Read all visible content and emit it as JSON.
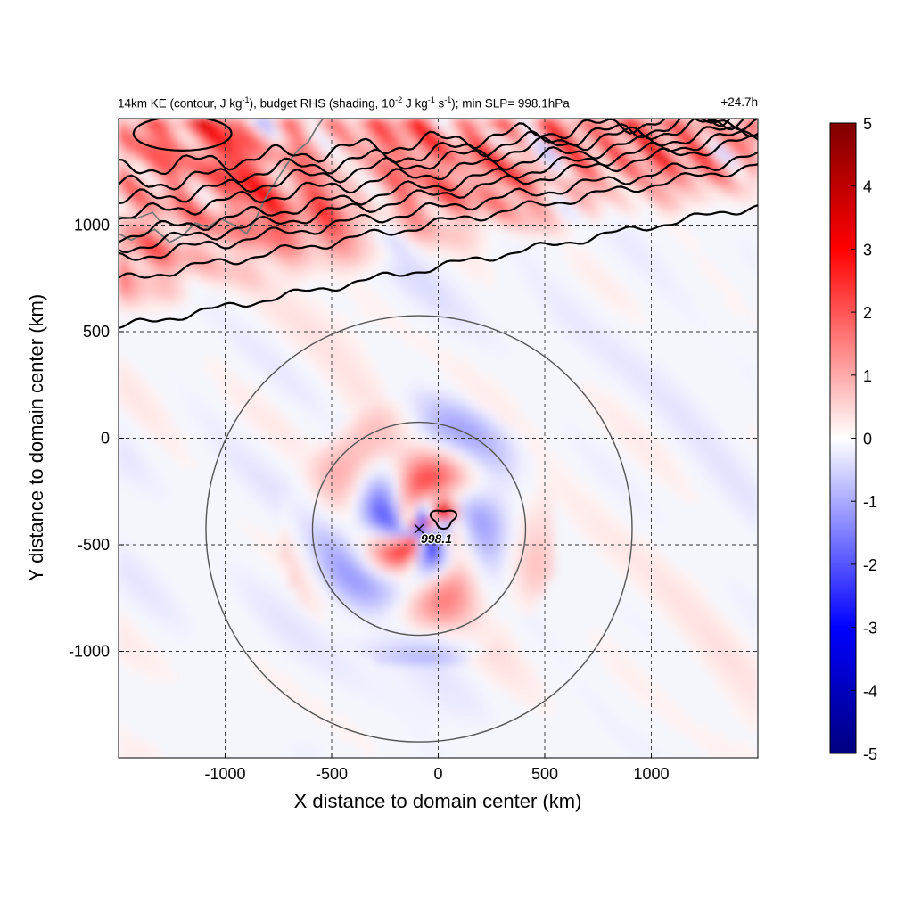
{
  "chart_data": {
    "type": "heatmap",
    "title_parts": {
      "a": "14km KE (contour, J kg",
      "a_sup": "-1",
      "b": "), budget RHS (shading, 10",
      "b_sup": "-2",
      "c": " J kg",
      "c_sup": "-1",
      "d": " s",
      "d_sup": "-1",
      "e": "); min SLP= 998.1hPa"
    },
    "time_label": "+24.7h",
    "xlabel": "X distance to domain center (km)",
    "ylabel": "Y distance to domain center (km)",
    "xlim": [
      -1500,
      1500
    ],
    "ylim": [
      -1500,
      1500
    ],
    "xticks": [
      -1000,
      -500,
      0,
      500,
      1000
    ],
    "yticks": [
      1000,
      500,
      0,
      -500,
      -1000
    ],
    "grid": "dashed",
    "colorbar": {
      "range": [
        -5,
        5
      ],
      "ticks": [
        5,
        4,
        3,
        2,
        1,
        0,
        -1,
        -2,
        -3,
        -4,
        -5
      ],
      "colors": {
        "min": "#00007f",
        "mid_low": "#0000ff",
        "zero": "#ffffff",
        "mid_high": "#ff0000",
        "max": "#7f0000"
      }
    },
    "center_marker": {
      "x": -90,
      "y": -425,
      "label": "998.1"
    },
    "range_circles_km": [
      500,
      1000
    ],
    "color_coast": "#777777",
    "color_contour": "#000000",
    "color_circle": "#555555"
  }
}
